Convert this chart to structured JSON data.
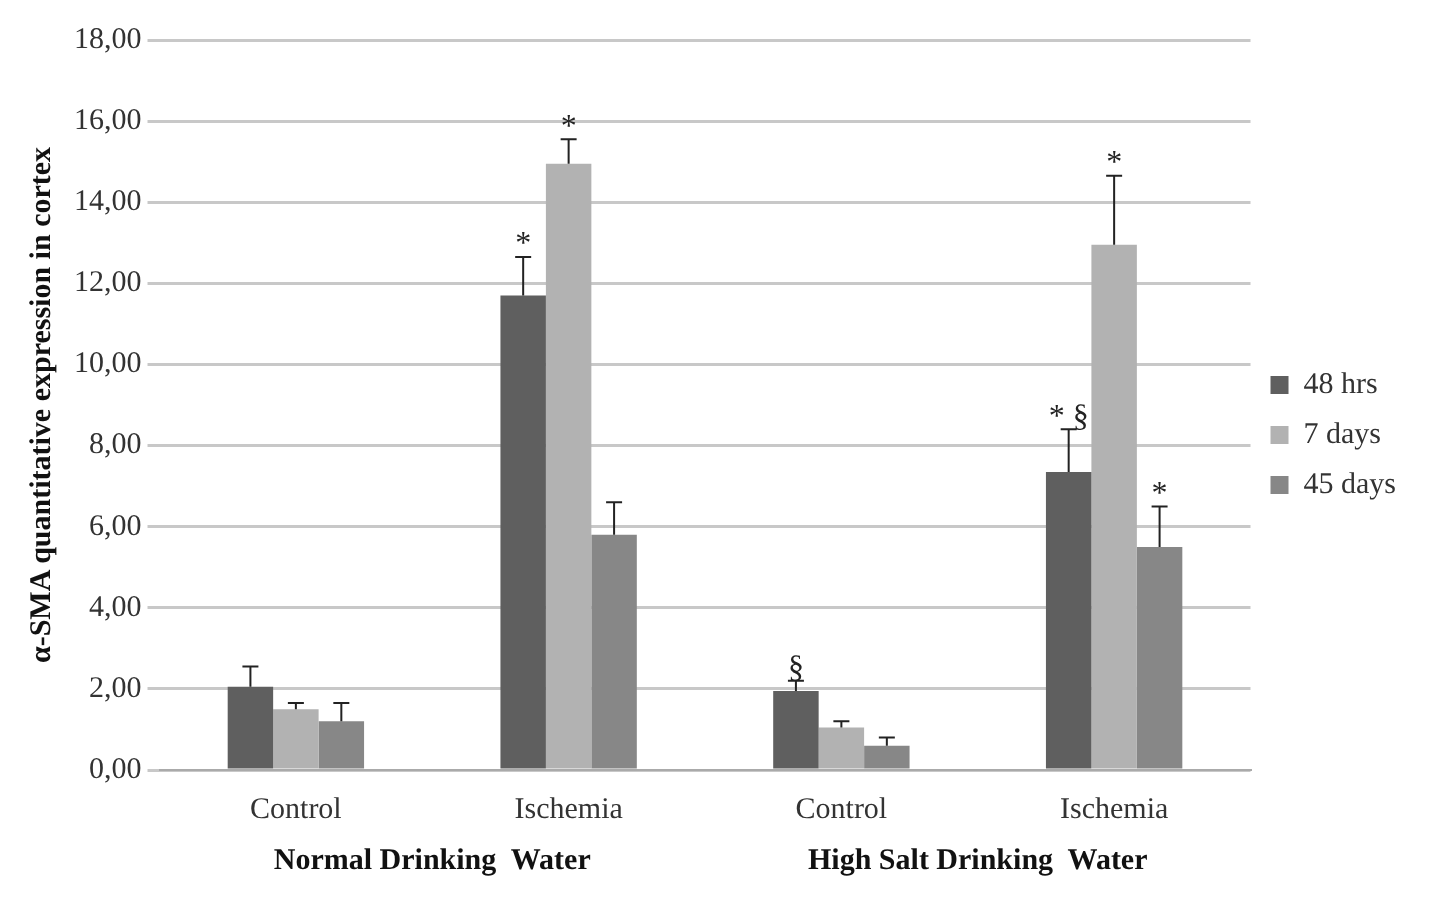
{
  "chart_data": {
    "type": "bar",
    "ylabel": "α-SMA quantitative expression in cortex",
    "categories": [
      "Control",
      "Ischemia",
      "Control",
      "Ischemia"
    ],
    "series": [
      {
        "name": "48 hrs",
        "color": "#5f5f5f",
        "values": [
          2.05,
          11.7,
          1.95,
          7.35
        ],
        "errors": [
          [
            2.05,
            2.55
          ],
          [
            11.7,
            12.65
          ],
          [
            1.95,
            2.2
          ],
          [
            7.35,
            8.4
          ]
        ],
        "value_labels": [
          null,
          "*",
          "§",
          "* §"
        ]
      },
      {
        "name": "7 days",
        "color": "#b2b2b2",
        "values": [
          1.5,
          14.95,
          1.05,
          12.95
        ],
        "errors": [
          [
            1.5,
            1.65
          ],
          [
            14.95,
            15.55
          ],
          [
            1.05,
            1.2
          ],
          [
            12.95,
            14.65
          ]
        ],
        "value_labels": [
          null,
          "*",
          null,
          "*"
        ]
      },
      {
        "name": "45 days",
        "color": "#878787",
        "values": [
          1.2,
          5.8,
          0.6,
          5.5
        ],
        "errors": [
          [
            1.2,
            1.65
          ],
          [
            5.8,
            6.6
          ],
          [
            0.6,
            0.8
          ],
          [
            5.5,
            6.5
          ]
        ],
        "value_labels": [
          null,
          null,
          null,
          "*"
        ]
      }
    ],
    "ylim": [
      0,
      18
    ],
    "yticks": [
      {
        "value": 0,
        "label": "0,00"
      },
      {
        "value": 2,
        "label": "2,00"
      },
      {
        "value": 4,
        "label": "4,00"
      },
      {
        "value": 6,
        "label": "6,00"
      },
      {
        "value": 8,
        "label": "8,00"
      },
      {
        "value": 10,
        "label": "10,00"
      },
      {
        "value": 12,
        "label": "12,00"
      },
      {
        "value": 14,
        "label": "14,00"
      },
      {
        "value": 16,
        "label": "16,00"
      },
      {
        "value": 18,
        "label": "18,00"
      }
    ],
    "grid": "y",
    "legend": "right",
    "annotations": [
      "Normal Drinking  Water",
      "High Salt Drinking  Water"
    ]
  }
}
